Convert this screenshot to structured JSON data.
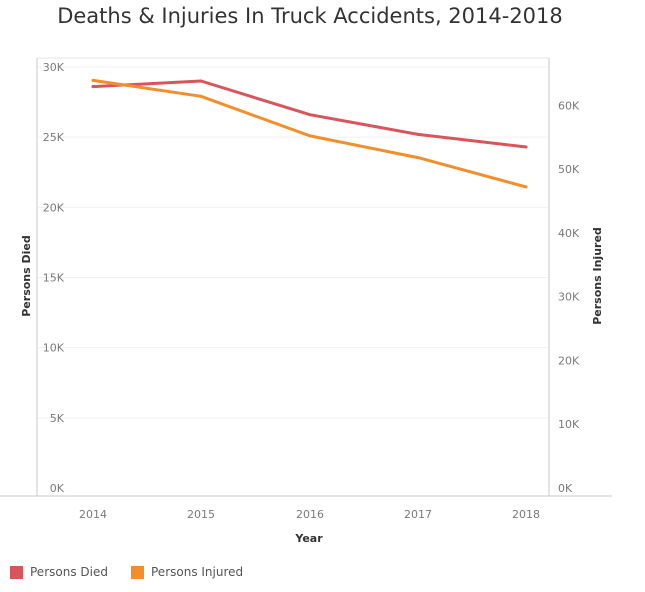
{
  "chart_data": {
    "type": "line",
    "title": "Deaths & Injuries In Truck Accidents, 2014-2018",
    "xlabel": "Year",
    "ylabel_left": "Persons Died",
    "ylabel_right": "Persons Injured",
    "x": [
      2014,
      2015,
      2016,
      2017,
      2018
    ],
    "x_tick_labels": [
      "2014",
      "2015",
      "2016",
      "2017",
      "2018"
    ],
    "ylim_left": [
      0,
      30000
    ],
    "left_ticks": [
      0,
      5000,
      10000,
      15000,
      20000,
      25000,
      30000
    ],
    "left_tick_labels": [
      "0K",
      "5K",
      "10K",
      "15K",
      "20K",
      "25K",
      "30K"
    ],
    "ylim_right": [
      0,
      66000
    ],
    "right_ticks": [
      0,
      10000,
      20000,
      30000,
      40000,
      50000,
      60000
    ],
    "right_tick_labels": [
      "0K",
      "10K",
      "20K",
      "30K",
      "40K",
      "50K",
      "60K"
    ],
    "grid": true,
    "legend_position": "bottom-left",
    "series": [
      {
        "name": "Persons Died",
        "axis": "left",
        "color": "#d9545b",
        "values": [
          28600,
          29000,
          26600,
          25200,
          24300
        ]
      },
      {
        "name": "Persons Injured",
        "axis": "right",
        "color": "#f28e2b",
        "values": [
          63900,
          61400,
          55200,
          51800,
          47200
        ]
      }
    ]
  }
}
